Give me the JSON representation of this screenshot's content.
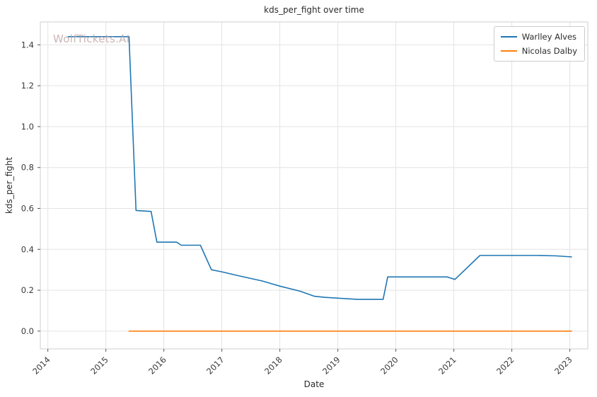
{
  "watermark": "WolfTickets.AI",
  "chart_data": {
    "type": "line",
    "title": "kds_per_fight over time",
    "xlabel": "Date",
    "ylabel": "kds_per_fight",
    "xlim": [
      2013.87,
      2023.31
    ],
    "ylim": [
      -0.087,
      1.512
    ],
    "x_ticks": [
      2014,
      2015,
      2016,
      2017,
      2018,
      2019,
      2020,
      2021,
      2022,
      2023
    ],
    "x_tick_labels": [
      "2014",
      "2015",
      "2016",
      "2017",
      "2018",
      "2019",
      "2020",
      "2021",
      "2022",
      "2023"
    ],
    "y_ticks": [
      0.0,
      0.2,
      0.4,
      0.6,
      0.8,
      1.0,
      1.2,
      1.4
    ],
    "y_tick_labels": [
      "0.0",
      "0.2",
      "0.4",
      "0.6",
      "0.8",
      "1.0",
      "1.2",
      "1.4"
    ],
    "grid": true,
    "legend_position": "upper right",
    "colors": {
      "grid": "#e3e3e3",
      "spine": "#cfcfcf",
      "tick": "#555555",
      "text": "#3a3a3a",
      "series_blue": "#1f77b4",
      "series_orange": "#ff7f0e"
    },
    "series": [
      {
        "name": "Warlley Alves",
        "color": "#1f77b4",
        "points": [
          [
            2014.35,
            1.44
          ],
          [
            2015.4,
            1.44
          ],
          [
            2015.52,
            0.59
          ],
          [
            2015.78,
            0.585
          ],
          [
            2015.88,
            0.435
          ],
          [
            2016.22,
            0.435
          ],
          [
            2016.3,
            0.42
          ],
          [
            2016.63,
            0.42
          ],
          [
            2016.82,
            0.3
          ],
          [
            2017.0,
            0.29
          ],
          [
            2017.3,
            0.27
          ],
          [
            2017.7,
            0.245
          ],
          [
            2018.0,
            0.22
          ],
          [
            2018.35,
            0.195
          ],
          [
            2018.6,
            0.17
          ],
          [
            2018.78,
            0.165
          ],
          [
            2019.05,
            0.16
          ],
          [
            2019.35,
            0.155
          ],
          [
            2019.78,
            0.155
          ],
          [
            2019.86,
            0.265
          ],
          [
            2020.4,
            0.265
          ],
          [
            2020.88,
            0.265
          ],
          [
            2021.02,
            0.253
          ],
          [
            2021.45,
            0.37
          ],
          [
            2022.0,
            0.37
          ],
          [
            2022.45,
            0.37
          ],
          [
            2022.75,
            0.368
          ],
          [
            2023.03,
            0.363
          ]
        ]
      },
      {
        "name": "Nicolas Dalby",
        "color": "#ff7f0e",
        "points": [
          [
            2015.4,
            0.0
          ],
          [
            2023.03,
            0.0
          ]
        ]
      }
    ]
  }
}
